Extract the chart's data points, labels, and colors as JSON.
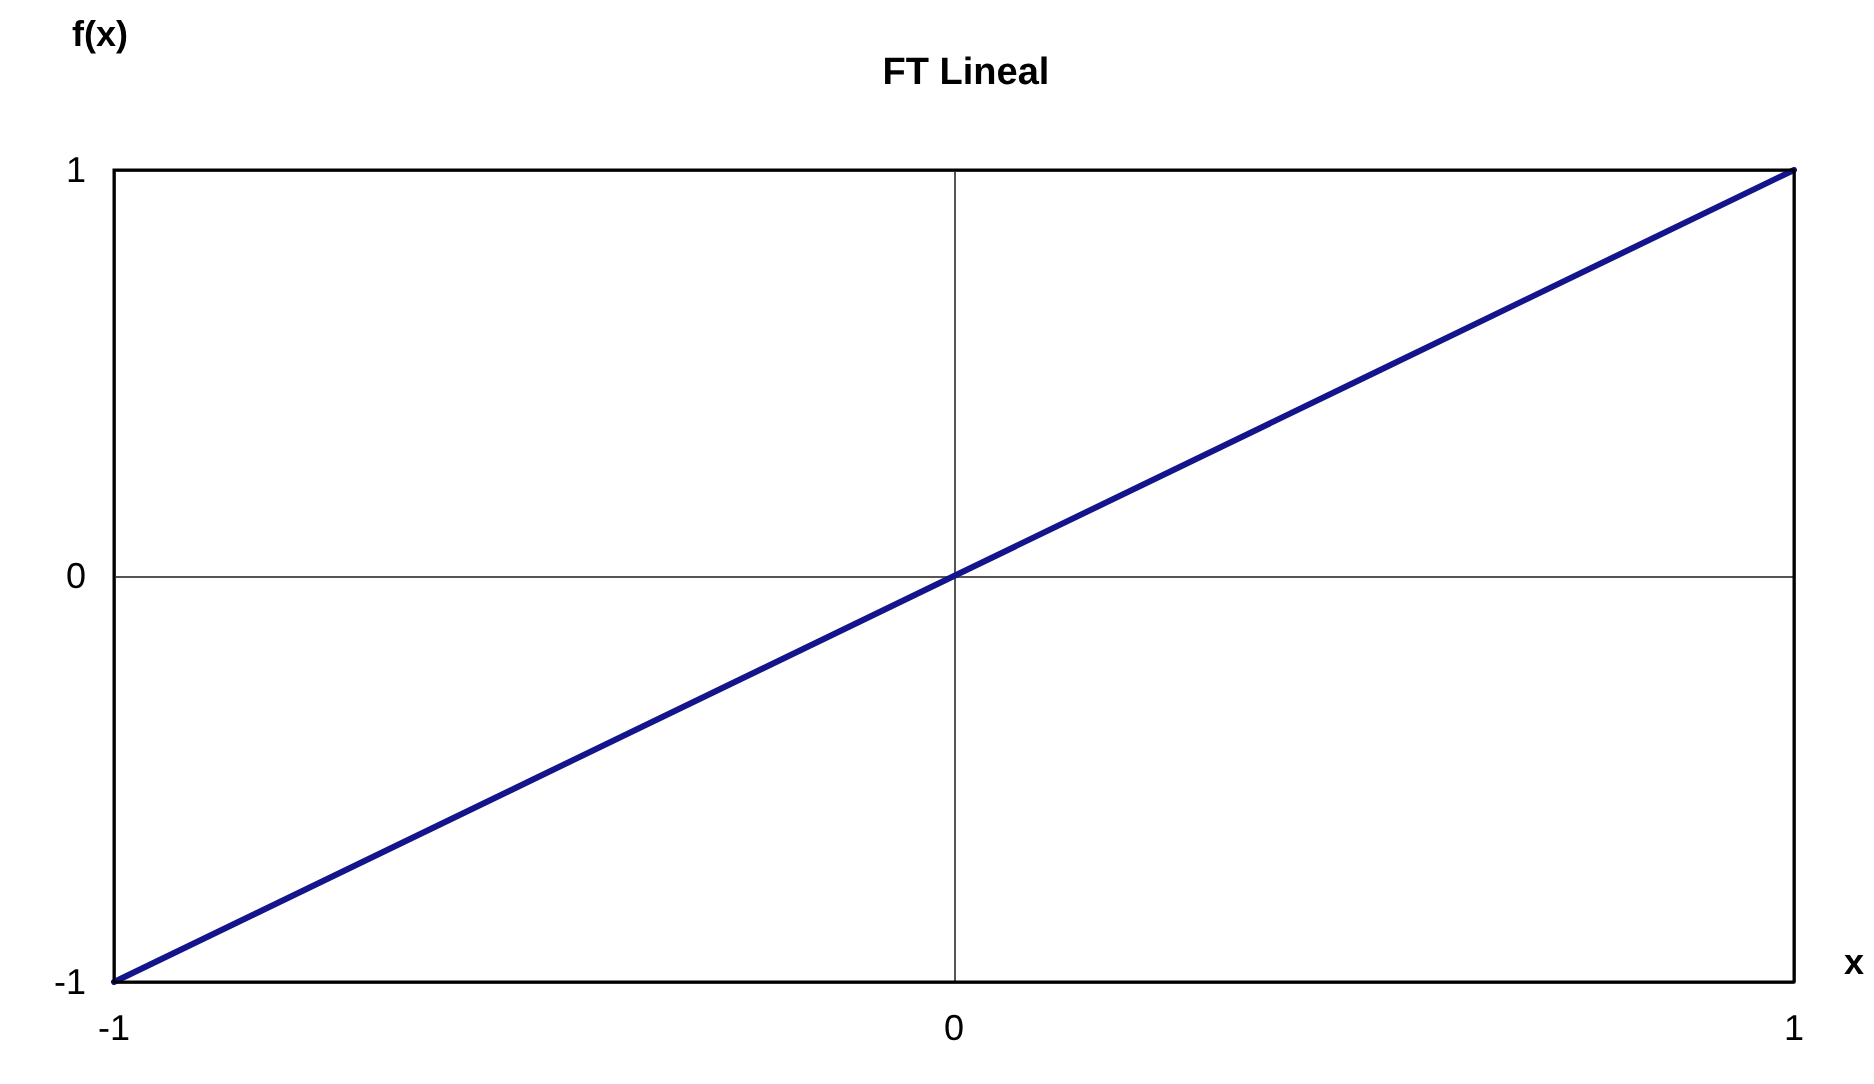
{
  "chart_data": {
    "type": "line",
    "title": "FT Lineal",
    "xlabel": "x",
    "ylabel": "f(x)",
    "x": [
      -1,
      -0.5,
      0,
      0.5,
      1
    ],
    "series": [
      {
        "color": "#14148c",
        "values": [
          -1,
          -0.5,
          0,
          0.5,
          1
        ]
      }
    ],
    "xlim": [
      -1,
      1
    ],
    "xticks": [
      -1,
      0,
      1
    ],
    "ylim": [
      -1,
      1
    ],
    "yticks": [
      -1,
      0,
      1
    ],
    "grid": true,
    "marker": "none",
    "line_style": "solid"
  }
}
